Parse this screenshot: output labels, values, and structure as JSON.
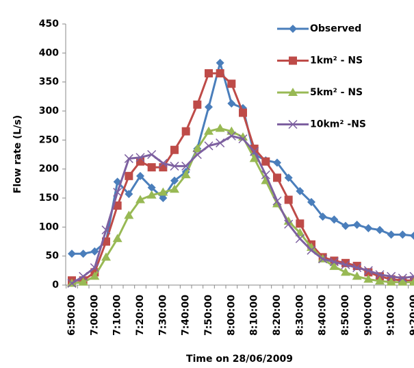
{
  "chart_data": {
    "type": "line",
    "x_label": "Time on 28/06/2009",
    "y_label": "Flow rate (L/s)",
    "categories": [
      "6:50:00",
      null,
      "7:00:00",
      null,
      "7:10:00",
      null,
      "7:20:00",
      null,
      "7:30:00",
      null,
      "7:40:00",
      null,
      "7:50:00",
      null,
      "8:00:00",
      null,
      "8:10:00",
      null,
      "8:20:00",
      null,
      "8:30:00",
      null,
      "8:40:00",
      null,
      "8:50:00",
      null,
      "9:00:00",
      null,
      "9:10:00",
      null,
      "9:20:00"
    ],
    "series": [
      {
        "name": "Observed",
        "color": "#4a7ebb",
        "marker": "diamond",
        "values": [
          54,
          54,
          58,
          75,
          178,
          157,
          188,
          168,
          150,
          180,
          195,
          235,
          307,
          383,
          313,
          305,
          225,
          215,
          211,
          185,
          162,
          143,
          118,
          113,
          102,
          104,
          98,
          95,
          87,
          87,
          85
        ]
      },
      {
        "name": "1km² - NS",
        "color": "#be4b48",
        "marker": "square",
        "values": [
          8,
          8,
          22,
          75,
          137,
          188,
          213,
          203,
          203,
          233,
          265,
          311,
          365,
          365,
          347,
          297,
          235,
          213,
          185,
          147,
          106,
          70,
          48,
          42,
          38,
          33,
          22,
          15,
          10,
          8,
          8
        ]
      },
      {
        "name": "5km² - NS",
        "color": "#98b954",
        "marker": "triangle",
        "values": [
          3,
          5,
          15,
          48,
          80,
          120,
          147,
          155,
          160,
          165,
          190,
          235,
          265,
          270,
          265,
          255,
          218,
          180,
          140,
          110,
          90,
          65,
          45,
          32,
          22,
          15,
          10,
          7,
          5,
          5,
          5
        ]
      },
      {
        "name": "10km² -NS",
        "color": "#7d60a0",
        "marker": "x",
        "values": [
          3,
          15,
          30,
          95,
          160,
          218,
          220,
          225,
          210,
          205,
          205,
          225,
          240,
          245,
          257,
          252,
          230,
          190,
          145,
          105,
          80,
          60,
          45,
          40,
          35,
          30,
          25,
          18,
          15,
          12,
          15
        ]
      }
    ],
    "ylim": [
      0,
      450
    ],
    "yticks": [
      0,
      50,
      100,
      150,
      200,
      250,
      300,
      350,
      400,
      450
    ],
    "grid": false,
    "legend_position": "upper right"
  }
}
